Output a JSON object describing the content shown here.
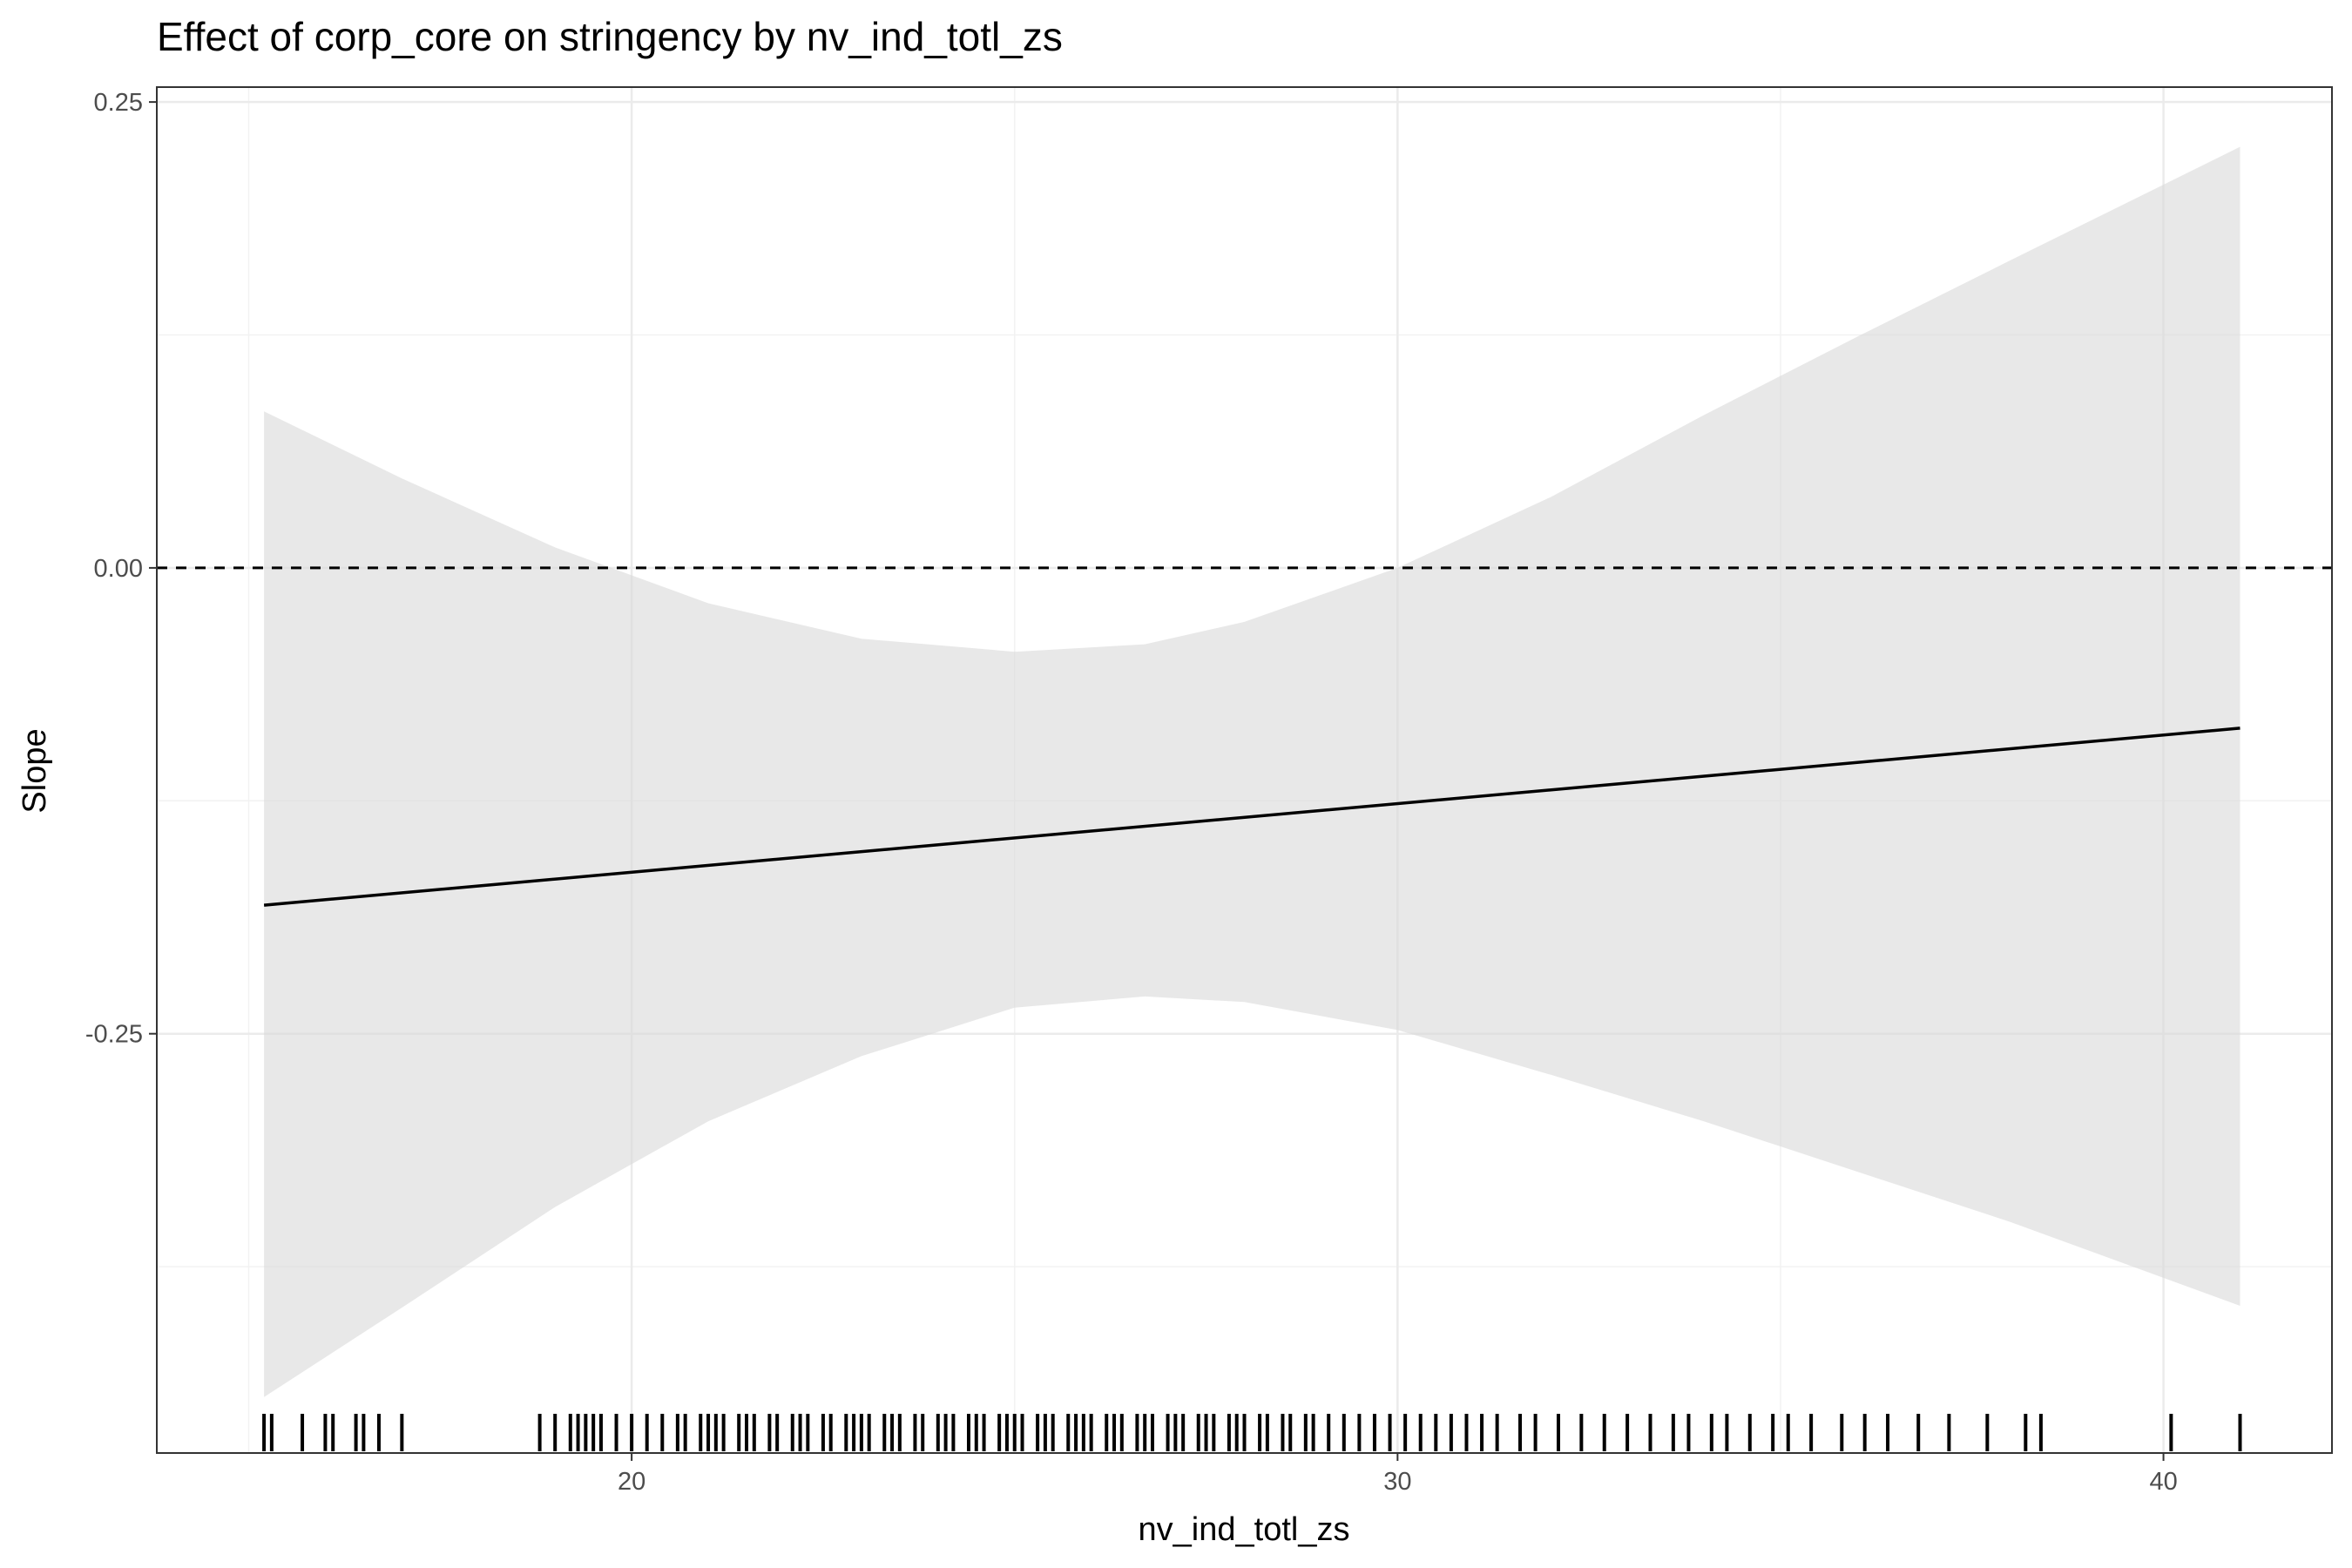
{
  "chart_data": {
    "type": "line",
    "title": "Effect of corp_core on stringency by nv_ind_totl_zs",
    "xlabel": "nv_ind_totl_zs",
    "ylabel": "Slope",
    "xlim": [
      13.8,
      42.2
    ],
    "ylim": [
      -0.475,
      0.258
    ],
    "x_ticks": [
      20,
      30,
      40
    ],
    "x_tick_labels": [
      "20",
      "30",
      "40"
    ],
    "y_ticks": [
      0.25,
      0.0,
      -0.25
    ],
    "y_tick_labels": [
      "0.25",
      "0.00",
      "-0.25"
    ],
    "grid": true,
    "reference_line": {
      "y": 0.0,
      "style": "dashed",
      "color": "#000000"
    },
    "series": [
      {
        "x": [
          15.2,
          41.0
        ],
        "y": [
          -0.181,
          -0.086
        ]
      }
    ],
    "confidence_band": {
      "x": [
        15.2,
        17.0,
        19.0,
        21.0,
        23.0,
        25.0,
        26.7,
        28.0,
        30.0,
        32.0,
        34.0,
        36.0,
        38.0,
        41.0
      ],
      "lower": [
        -0.445,
        -0.397,
        -0.343,
        -0.297,
        -0.262,
        -0.236,
        -0.23,
        -0.233,
        -0.248,
        -0.272,
        -0.297,
        -0.324,
        -0.351,
        -0.396
      ],
      "upper": [
        0.084,
        0.048,
        0.011,
        -0.019,
        -0.038,
        -0.045,
        -0.041,
        -0.029,
        0.0,
        0.038,
        0.082,
        0.124,
        0.165,
        0.226
      ]
    },
    "rug_x": [
      15.2,
      15.3,
      15.7,
      16.0,
      16.1,
      16.4,
      16.5,
      16.7,
      17.0,
      18.8,
      19.0,
      19.2,
      19.3,
      19.4,
      19.5,
      19.6,
      19.8,
      20.0,
      20.2,
      20.4,
      20.6,
      20.7,
      20.9,
      21.0,
      21.1,
      21.2,
      21.4,
      21.5,
      21.6,
      21.8,
      21.9,
      22.1,
      22.2,
      22.3,
      22.5,
      22.6,
      22.8,
      22.9,
      23.0,
      23.1,
      23.3,
      23.4,
      23.5,
      23.7,
      23.8,
      24.0,
      24.1,
      24.2,
      24.4,
      24.5,
      24.6,
      24.8,
      24.9,
      25.0,
      25.1,
      25.3,
      25.4,
      25.5,
      25.7,
      25.8,
      25.9,
      26.0,
      26.2,
      26.3,
      26.4,
      26.6,
      26.7,
      26.8,
      27.0,
      27.1,
      27.2,
      27.4,
      27.5,
      27.6,
      27.8,
      27.9,
      28.0,
      28.2,
      28.3,
      28.5,
      28.6,
      28.8,
      28.9,
      29.1,
      29.3,
      29.5,
      29.7,
      29.9,
      30.1,
      30.3,
      30.5,
      30.7,
      30.9,
      31.1,
      31.3,
      31.6,
      31.8,
      32.1,
      32.4,
      32.7,
      33.0,
      33.3,
      33.6,
      33.8,
      34.1,
      34.3,
      34.6,
      34.9,
      35.1,
      35.4,
      35.8,
      36.1,
      36.4,
      36.8,
      37.2,
      37.7,
      38.2,
      38.4,
      40.1,
      41.0
    ]
  }
}
